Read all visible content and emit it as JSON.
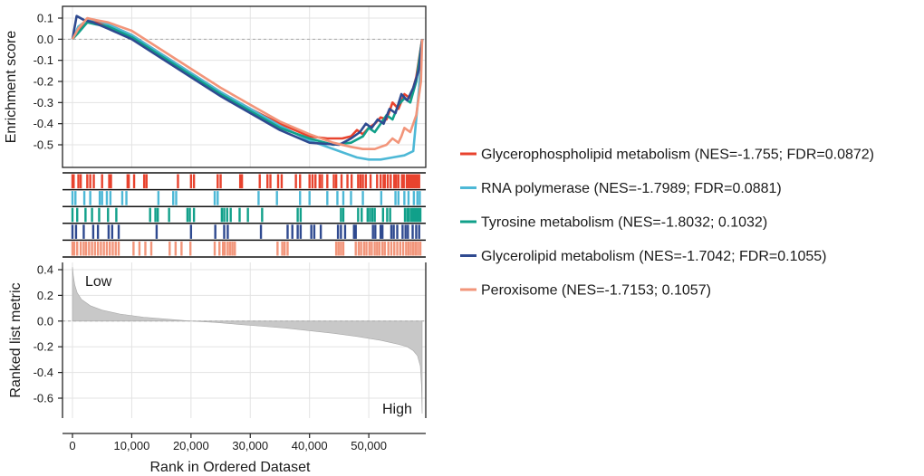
{
  "chart_data": {
    "type": "line",
    "title": "",
    "xlabel": "Rank in Ordered Dataset",
    "x_ticks": [
      0,
      10000,
      20000,
      30000,
      40000,
      50000
    ],
    "x_tick_labels": [
      "0",
      "10,000",
      "20,000",
      "30,000",
      "40,000",
      "50,000"
    ],
    "xlim": [
      0,
      59000
    ],
    "enrichment": {
      "ylabel": "Enrichment score",
      "ylim": [
        -0.6,
        0.12
      ],
      "y_ticks": [
        0.1,
        0.0,
        -0.1,
        -0.2,
        -0.3,
        -0.4,
        -0.5
      ],
      "y_tick_labels": [
        "0.1",
        "0.0",
        "-0.1",
        "-0.2",
        "-0.3",
        "-0.4",
        "-0.5"
      ],
      "series": [
        {
          "name": "Glycerophospholipid metabolism",
          "legend": "Glycerophospholipid metabolism (NES=-1.755; FDR=0.0872)",
          "color": "#e8432e",
          "x": [
            0,
            1000,
            2500,
            4000,
            6000,
            10000,
            15000,
            20000,
            25000,
            30000,
            35000,
            40000,
            43000,
            45500,
            47000,
            48000,
            49000,
            50000,
            51000,
            52000,
            53000,
            54000,
            55000,
            56000,
            57000,
            58000,
            59000
          ],
          "y": [
            0,
            0.04,
            0.08,
            0.08,
            0.07,
            0.02,
            -0.07,
            -0.16,
            -0.25,
            -0.33,
            -0.4,
            -0.46,
            -0.47,
            -0.47,
            -0.46,
            -0.43,
            -0.45,
            -0.42,
            -0.4,
            -0.37,
            -0.38,
            -0.3,
            -0.33,
            -0.26,
            -0.28,
            -0.18,
            0
          ]
        },
        {
          "name": "RNA polymerase",
          "legend": "RNA polymerase (NES=-1.7989; FDR=0.0881)",
          "color": "#4db8d6",
          "x": [
            0,
            1000,
            2500,
            4000,
            6000,
            10000,
            15000,
            20000,
            25000,
            30000,
            35000,
            40000,
            45000,
            48000,
            50000,
            52000,
            54000,
            56000,
            57500,
            58500,
            59000
          ],
          "y": [
            0,
            0.06,
            0.09,
            0.09,
            0.07,
            0.02,
            -0.07,
            -0.16,
            -0.25,
            -0.33,
            -0.41,
            -0.48,
            -0.53,
            -0.56,
            -0.57,
            -0.57,
            -0.56,
            -0.55,
            -0.53,
            -0.23,
            0
          ]
        },
        {
          "name": "Tyrosine metabolism",
          "legend": "Tyrosine metabolism (NES=-1.8032; 0.1032)",
          "color": "#11a08a",
          "x": [
            0,
            1000,
            2500,
            4000,
            6000,
            10000,
            15000,
            20000,
            25000,
            30000,
            35000,
            40000,
            44000,
            47000,
            49000,
            50000,
            51000,
            52000,
            53000,
            54000,
            55000,
            56000,
            57000,
            58000,
            59000
          ],
          "y": [
            0,
            0.03,
            0.08,
            0.07,
            0.06,
            0.01,
            -0.08,
            -0.17,
            -0.26,
            -0.34,
            -0.42,
            -0.47,
            -0.5,
            -0.49,
            -0.46,
            -0.42,
            -0.44,
            -0.4,
            -0.36,
            -0.38,
            -0.31,
            -0.28,
            -0.3,
            -0.2,
            0
          ]
        },
        {
          "name": "Glycerolipid metabolism",
          "legend": "Glycerolipid metabolism (NES=-1.7042; FDR=0.1055)",
          "color": "#2f4a90",
          "x": [
            0,
            700,
            2000,
            3500,
            6000,
            10000,
            15000,
            20000,
            25000,
            30000,
            35000,
            40000,
            45000,
            47000,
            48500,
            49500,
            50500,
            51500,
            52500,
            53500,
            54500,
            55500,
            56500,
            57500,
            58500,
            59000
          ],
          "y": [
            0,
            0.11,
            0.09,
            0.08,
            0.05,
            0.0,
            -0.09,
            -0.18,
            -0.27,
            -0.35,
            -0.43,
            -0.49,
            -0.5,
            -0.47,
            -0.44,
            -0.4,
            -0.42,
            -0.38,
            -0.4,
            -0.33,
            -0.35,
            -0.26,
            -0.29,
            -0.23,
            -0.14,
            0
          ]
        },
        {
          "name": "Peroxisome",
          "legend": "Peroxisome (NES=-1.7153; 0.1057)",
          "color": "#f2957a",
          "x": [
            0,
            1000,
            2500,
            4000,
            6000,
            10000,
            15000,
            20000,
            25000,
            30000,
            35000,
            40000,
            44000,
            47000,
            49000,
            51000,
            52000,
            53000,
            54000,
            55000,
            55500,
            56000,
            57000,
            58000,
            58800,
            59000
          ],
          "y": [
            0,
            0.05,
            0.1,
            0.09,
            0.08,
            0.04,
            -0.05,
            -0.14,
            -0.23,
            -0.31,
            -0.39,
            -0.45,
            -0.49,
            -0.51,
            -0.52,
            -0.52,
            -0.51,
            -0.5,
            -0.47,
            -0.49,
            -0.46,
            -0.42,
            -0.44,
            -0.36,
            -0.2,
            0
          ]
        }
      ]
    },
    "hits": {
      "Glycerophospholipid metabolism": [
        0,
        200,
        1000,
        1400,
        2500,
        3000,
        3600,
        5000,
        6200,
        6500,
        9300,
        9500,
        10400,
        12100,
        12500,
        17800,
        20000,
        20500,
        24500,
        25000,
        28300,
        28600,
        31600,
        32900,
        33400,
        34700,
        35300,
        37700,
        38400,
        40000,
        40500,
        41000,
        41700,
        42100,
        43000,
        44100,
        44500,
        45400,
        46400,
        47100,
        48200,
        48600,
        49000,
        49500,
        50300,
        51400,
        52000,
        52500,
        52700,
        53200,
        53700,
        54300,
        54600,
        55000,
        55600,
        55900,
        56400,
        56700,
        57000,
        57300,
        57600,
        57900,
        58200,
        58500
      ],
      "RNA polymerase": [
        0,
        500,
        2000,
        3000,
        4600,
        5000,
        5800,
        6400,
        8400,
        9100,
        14500,
        17000,
        17500,
        24000,
        24500,
        31400,
        34500,
        38400,
        40000,
        43000,
        44700,
        45700,
        47000,
        49000,
        52100,
        54500,
        55000,
        56000,
        56700,
        57600,
        58200,
        58600
      ],
      "Tyrosine metabolism": [
        0,
        800,
        2200,
        3300,
        4500,
        6000,
        7400,
        13100,
        14000,
        14400,
        16300,
        19400,
        19800,
        20500,
        25200,
        25600,
        26100,
        26700,
        28200,
        29600,
        32000,
        38000,
        38500,
        45300,
        45700,
        48200,
        48800,
        49800,
        50200,
        50600,
        51000,
        52400,
        53100,
        53600,
        56100,
        56500,
        56800,
        57200,
        57500,
        57800,
        58100,
        58400,
        58700
      ],
      "Glycerolipid metabolism": [
        0,
        600,
        1900,
        3500,
        4300,
        6100,
        6700,
        7800,
        14200,
        20000,
        24100,
        25600,
        26200,
        31800,
        36300,
        37100,
        38000,
        38500,
        40300,
        40800,
        41900,
        44800,
        45300,
        46000,
        47500,
        47800,
        50700,
        51100,
        52000,
        52300,
        53800,
        54200,
        54800,
        55700,
        56200,
        56600,
        57400,
        58000,
        58500
      ],
      "Peroxisome": [
        0,
        300,
        800,
        1400,
        1900,
        2300,
        2800,
        3300,
        3800,
        4300,
        4800,
        5300,
        5800,
        6300,
        6800,
        7300,
        7800,
        10300,
        11300,
        12300,
        13300,
        16400,
        17400,
        18400,
        19900,
        24000,
        24800,
        25400,
        25700,
        26200,
        26600,
        27000,
        27400,
        34600,
        35400,
        35800,
        36300,
        44500,
        44900,
        45300,
        45700,
        47800,
        48300,
        48700,
        49200,
        49600,
        50100,
        50500,
        51000,
        51400,
        51800,
        52300,
        52700,
        53300,
        53800,
        54300,
        54800,
        55300,
        55800,
        56300,
        56700,
        57100,
        57500,
        57900,
        58300,
        58700
      ]
    },
    "ranked": {
      "ylabel": "Ranked list metric",
      "ylim": [
        -0.73,
        0.45
      ],
      "y_ticks": [
        0.4,
        0.2,
        0.0,
        -0.2,
        -0.4,
        -0.6
      ],
      "y_tick_labels": [
        "0.4",
        "0.2",
        "0.0",
        "-0.2",
        "-0.4",
        "-0.6"
      ],
      "fill_color": "#c8c8c8",
      "x": [
        0,
        150,
        400,
        800,
        1500,
        3000,
        5000,
        8000,
        12000,
        16000,
        20000,
        24000,
        28000,
        32000,
        36000,
        40000,
        44000,
        48000,
        52000,
        55000,
        56500,
        57500,
        58200,
        58700,
        58900,
        59000
      ],
      "y": [
        0.42,
        0.35,
        0.28,
        0.22,
        0.17,
        0.12,
        0.085,
        0.055,
        0.03,
        0.015,
        0.0,
        -0.01,
        -0.025,
        -0.04,
        -0.055,
        -0.075,
        -0.095,
        -0.12,
        -0.15,
        -0.18,
        -0.2,
        -0.23,
        -0.27,
        -0.35,
        -0.5,
        -0.72
      ],
      "label_low": "Low",
      "label_high": "High"
    }
  }
}
